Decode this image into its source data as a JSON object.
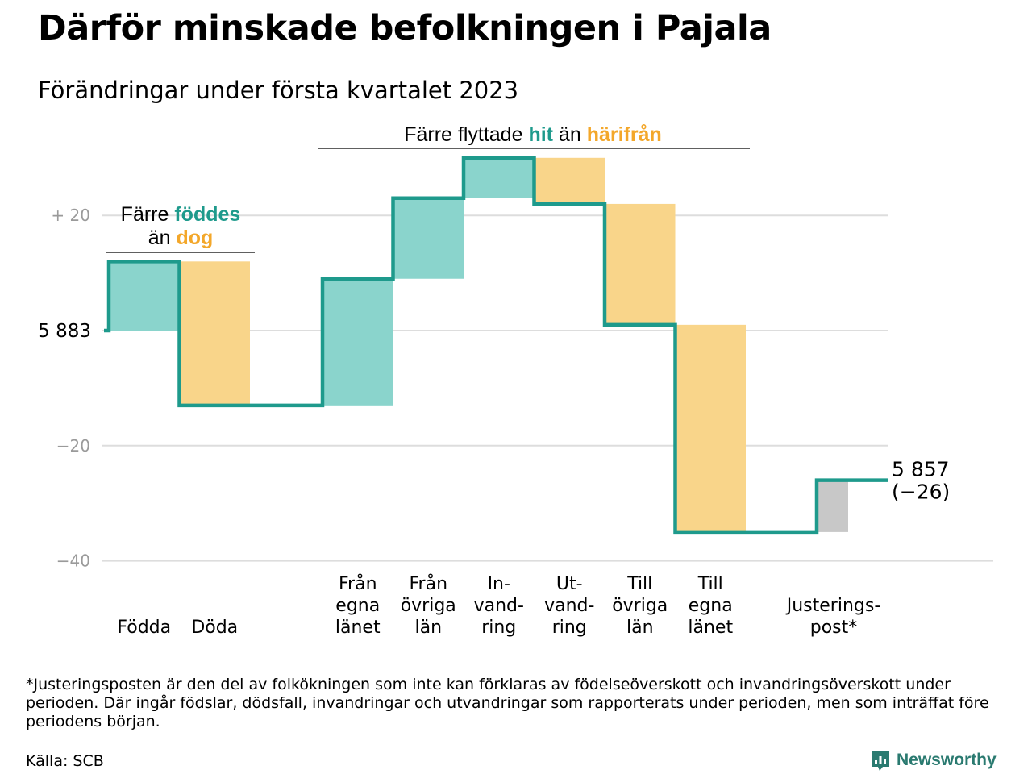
{
  "title": "Därför minskade befolkningen i Pajala",
  "subtitle": "Förändringar under första kvartalet 2023",
  "colors": {
    "in": "#8ad4cc",
    "out": "#f9d58a",
    "adjust": "#c8c8c8",
    "line": "#1e9a8c",
    "teal_text": "#1e9a8c",
    "orange_text": "#f3a72a",
    "grid": "#dddddd",
    "axis_text": "#9a9a9a",
    "brand": "#2a7a70"
  },
  "chart_data": {
    "type": "waterfall",
    "start_value": 5883,
    "start_label": "5 883",
    "end_value": 5857,
    "end_label": "5 857",
    "change_label": "(−26)",
    "ylim": [
      -40,
      33
    ],
    "yticks": [
      {
        "value": 20,
        "label": "+ 20"
      },
      {
        "value": 0,
        "label": ""
      },
      {
        "value": -20,
        "label": "−20"
      },
      {
        "value": -40,
        "label": "−40"
      }
    ],
    "steps": [
      {
        "name": "Födda",
        "label_lines": [
          "Födda"
        ],
        "value": 12,
        "kind": "in",
        "group": 0
      },
      {
        "name": "Döda",
        "label_lines": [
          "Döda"
        ],
        "value": -25,
        "kind": "out",
        "group": 0
      },
      {
        "name": "Från egna länet",
        "label_lines": [
          "Från",
          "egna",
          "länet"
        ],
        "value": 22,
        "kind": "in",
        "group": 1
      },
      {
        "name": "Från övriga län",
        "label_lines": [
          "Från",
          "övriga",
          "län"
        ],
        "value": 14,
        "kind": "in",
        "group": 1
      },
      {
        "name": "Invandring",
        "label_lines": [
          "In-",
          "vand-",
          "ring"
        ],
        "value": 7,
        "kind": "in",
        "group": 1
      },
      {
        "name": "Utvandring",
        "label_lines": [
          "Ut-",
          "vand-",
          "ring"
        ],
        "value": -8,
        "kind": "out",
        "group": 1
      },
      {
        "name": "Till övriga län",
        "label_lines": [
          "Till",
          "övriga",
          "län"
        ],
        "value": -21,
        "kind": "out",
        "group": 1
      },
      {
        "name": "Till egna länet",
        "label_lines": [
          "Till",
          "egna",
          "länet"
        ],
        "value": -36,
        "kind": "out",
        "group": 1
      },
      {
        "name": "Justeringspost*",
        "label_lines": [
          "Justerings-",
          "post*"
        ],
        "value": 9,
        "kind": "adjust",
        "group": 2
      }
    ],
    "annotations": [
      {
        "id": "births",
        "parts": [
          [
            {
              "text": "Färre ",
              "style": "plain"
            },
            {
              "text": "föddes",
              "style": "teal"
            }
          ],
          [
            {
              "text": "än ",
              "style": "plain"
            },
            {
              "text": "dog",
              "style": "orange"
            }
          ]
        ]
      },
      {
        "id": "migration",
        "parts": [
          [
            {
              "text": "Färre flyttade ",
              "style": "plain"
            },
            {
              "text": "hit",
              "style": "teal"
            },
            {
              "text": " än ",
              "style": "plain"
            },
            {
              "text": "härifrån",
              "style": "orange"
            }
          ]
        ]
      }
    ]
  },
  "footnote": "*Justeringsposten är den del av folkökningen som inte kan förklaras av födelseöverskott och invandringsöverskott under perioden. Där ingår födslar, dödsfall, invandringar och utvandringar som rapporterats under perioden, men som inträffat före periodens början.",
  "source": "Källa: SCB",
  "brand": "Newsworthy"
}
